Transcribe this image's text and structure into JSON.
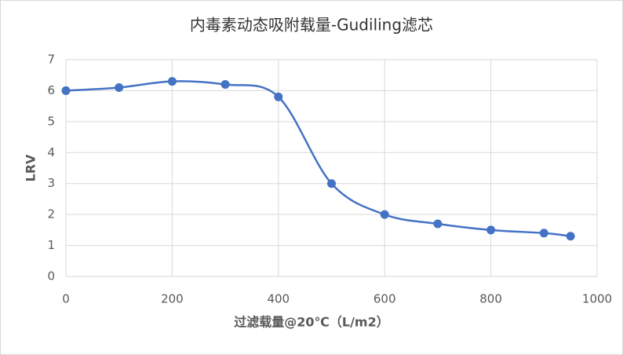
{
  "chart_data": {
    "type": "line",
    "title": "内毒素动态吸附载量-Gudiling滤芯",
    "x_label": "过滤载量@20℃（L/m2）",
    "y_label": "LRV",
    "x": [
      0,
      100,
      200,
      300,
      400,
      500,
      600,
      700,
      800,
      900,
      950
    ],
    "series": [
      {
        "color": "#4472c4",
        "values": [
          6.0,
          6.1,
          6.3,
          6.2,
          5.8,
          3.0,
          2.0,
          1.7,
          1.5,
          1.4,
          1.3
        ]
      }
    ],
    "smooth": true,
    "markers": true,
    "xlim": [
      0,
      1000
    ],
    "xticks": [
      0,
      200,
      400,
      600,
      800,
      1000
    ],
    "ylim": [
      0,
      7
    ],
    "yticks": [
      0,
      1,
      2,
      3,
      4,
      5,
      6,
      7
    ],
    "grid": true
  }
}
